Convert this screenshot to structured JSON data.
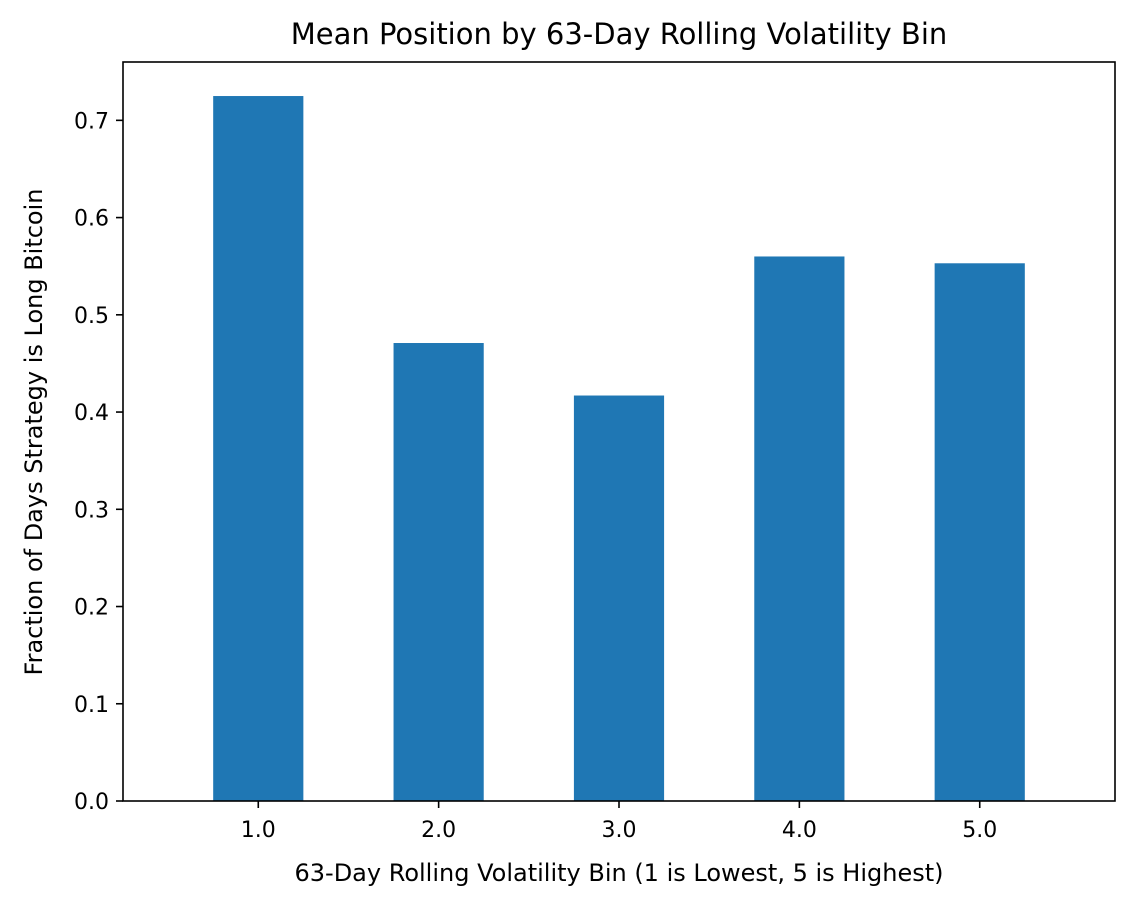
{
  "chart_data": {
    "type": "bar",
    "title": "Mean Position by 63-Day Rolling Volatility Bin",
    "xlabel": "63-Day Rolling Volatility Bin (1 is Lowest, 5 is Highest)",
    "ylabel": "Fraction of Days Strategy is Long Bitcoin",
    "categories": [
      "1.0",
      "2.0",
      "3.0",
      "4.0",
      "5.0"
    ],
    "values": [
      0.725,
      0.471,
      0.417,
      0.56,
      0.553
    ],
    "ylim": [
      0,
      0.76
    ],
    "yticks": [
      "0.0",
      "0.1",
      "0.2",
      "0.3",
      "0.4",
      "0.5",
      "0.6",
      "0.7"
    ],
    "bar_color": "#1f77b4",
    "grid": false,
    "legend": "none"
  }
}
